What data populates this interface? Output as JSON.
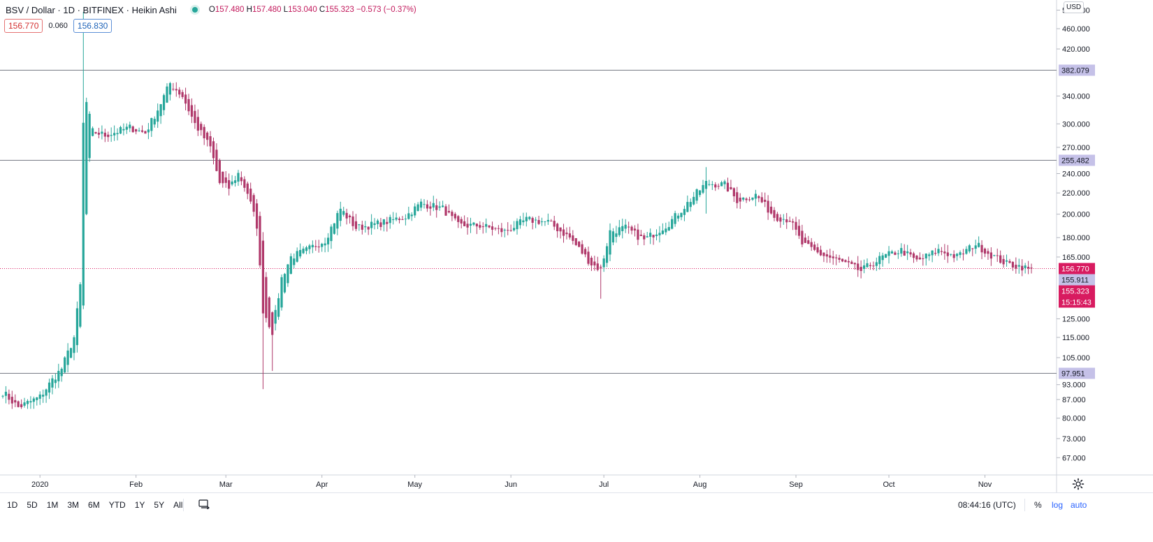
{
  "header": {
    "symbol": "BSV / Dollar · 1D · BITFINEX · Heikin Ashi",
    "open_label": "O",
    "open": "157.480",
    "high_label": "H",
    "high": "157.480",
    "low_label": "L",
    "low": "153.040",
    "close_label": "C",
    "close": "155.323",
    "change": "−0.573 (−0.37%)"
  },
  "quote": {
    "bid": "156.770",
    "spread": "0.060",
    "ask": "156.830"
  },
  "currency_label": "USD",
  "price_axis": {
    "ticks": [
      "500.000",
      "460.000",
      "420.000",
      "382.079",
      "340.000",
      "300.000",
      "270.000",
      "255.482",
      "240.000",
      "220.000",
      "200.000",
      "180.000",
      "165.000",
      "156.770",
      "155.911",
      "155.323",
      "15:15:43",
      "125.000",
      "115.000",
      "105.000",
      "97.951",
      "93.000",
      "87.000",
      "80.000",
      "73.000",
      "67.000"
    ],
    "grid_ticks": [
      "500.000",
      "460.000",
      "420.000",
      "340.000",
      "300.000",
      "270.000",
      "240.000",
      "220.000",
      "200.000",
      "180.000",
      "165.000",
      "125.000",
      "115.000",
      "105.000",
      "93.000",
      "87.000",
      "80.000",
      "73.000",
      "67.000"
    ],
    "levels": [
      {
        "value": 382.079,
        "label": "382.079"
      },
      {
        "value": 255.482,
        "label": "255.482"
      },
      {
        "value": 97.951,
        "label": "97.951"
      }
    ],
    "last_price": {
      "value": 156.77,
      "label": "156.770"
    },
    "mid_label": "155.911",
    "close_label": "155.323",
    "countdown": "15:15:43"
  },
  "time_axis": {
    "labels": [
      "2020",
      "Feb",
      "Mar",
      "Apr",
      "May",
      "Jun",
      "Jul",
      "Aug",
      "Sep",
      "Oct",
      "Nov"
    ]
  },
  "toolbar": {
    "timeframes": [
      "1D",
      "5D",
      "1M",
      "3M",
      "6M",
      "YTD",
      "1Y",
      "5Y",
      "All"
    ],
    "clock": "08:44:16 (UTC)",
    "percent": "%",
    "log": "log",
    "auto": "auto"
  },
  "colors": {
    "up": "#26a69a",
    "down": "#b0386a",
    "level": "#787b86",
    "level_label_bg": "#c5c1e8",
    "last": "#d81b60"
  },
  "icons": {
    "compare": "compare-icon",
    "settings": "gear-icon"
  },
  "chart_data": {
    "type": "candlestick",
    "style": "Heikin Ashi",
    "x_range": [
      "2019-12-20",
      "2020-11-16"
    ],
    "y_scale": "log",
    "y_range": [
      62,
      520
    ],
    "horizontal_lines": [
      382.079,
      255.482,
      97.951
    ],
    "anchors": [
      [
        "2019-12-20",
        90
      ],
      [
        "2019-12-25",
        84
      ],
      [
        "2020-01-01",
        88
      ],
      [
        "2020-01-05",
        95
      ],
      [
        "2020-01-08",
        100
      ],
      [
        "2020-01-12",
        115
      ],
      [
        "2020-01-14",
        145
      ],
      [
        "2020-01-15",
        300
      ],
      [
        "2020-01-16",
        330
      ],
      [
        "2020-01-18",
        290
      ],
      [
        "2020-01-22",
        285
      ],
      [
        "2020-01-26",
        290
      ],
      [
        "2020-01-30",
        295
      ],
      [
        "2020-02-04",
        288
      ],
      [
        "2020-02-08",
        320
      ],
      [
        "2020-02-12",
        360
      ],
      [
        "2020-02-16",
        340
      ],
      [
        "2020-02-20",
        300
      ],
      [
        "2020-02-25",
        270
      ],
      [
        "2020-02-28",
        230
      ],
      [
        "2020-03-02",
        225
      ],
      [
        "2020-03-05",
        240
      ],
      [
        "2020-03-08",
        220
      ],
      [
        "2020-03-11",
        190
      ],
      [
        "2020-03-13",
        130
      ],
      [
        "2020-03-16",
        118
      ],
      [
        "2020-03-19",
        150
      ],
      [
        "2020-03-22",
        165
      ],
      [
        "2020-03-27",
        170
      ],
      [
        "2020-04-02",
        178
      ],
      [
        "2020-04-07",
        205
      ],
      [
        "2020-04-12",
        188
      ],
      [
        "2020-04-20",
        192
      ],
      [
        "2020-04-28",
        198
      ],
      [
        "2020-05-03",
        210
      ],
      [
        "2020-05-10",
        205
      ],
      [
        "2020-05-15",
        190
      ],
      [
        "2020-05-22",
        190
      ],
      [
        "2020-05-30",
        185
      ],
      [
        "2020-06-06",
        195
      ],
      [
        "2020-06-13",
        193
      ],
      [
        "2020-06-20",
        180
      ],
      [
        "2020-06-27",
        160
      ],
      [
        "2020-06-30",
        156
      ],
      [
        "2020-07-03",
        185
      ],
      [
        "2020-07-08",
        188
      ],
      [
        "2020-07-14",
        178
      ],
      [
        "2020-07-22",
        192
      ],
      [
        "2020-07-28",
        210
      ],
      [
        "2020-08-03",
        230
      ],
      [
        "2020-08-09",
        228
      ],
      [
        "2020-08-13",
        213
      ],
      [
        "2020-08-19",
        218
      ],
      [
        "2020-08-25",
        198
      ],
      [
        "2020-08-30",
        195
      ],
      [
        "2020-09-03",
        175
      ],
      [
        "2020-09-08",
        168
      ],
      [
        "2020-09-15",
        162
      ],
      [
        "2020-09-22",
        155
      ],
      [
        "2020-09-29",
        165
      ],
      [
        "2020-10-05",
        170
      ],
      [
        "2020-10-10",
        162
      ],
      [
        "2020-10-17",
        170
      ],
      [
        "2020-10-23",
        165
      ],
      [
        "2020-10-29",
        175
      ],
      [
        "2020-11-02",
        168
      ],
      [
        "2020-11-08",
        160
      ],
      [
        "2020-11-13",
        158
      ],
      [
        "2020-11-16",
        155.323
      ]
    ]
  }
}
